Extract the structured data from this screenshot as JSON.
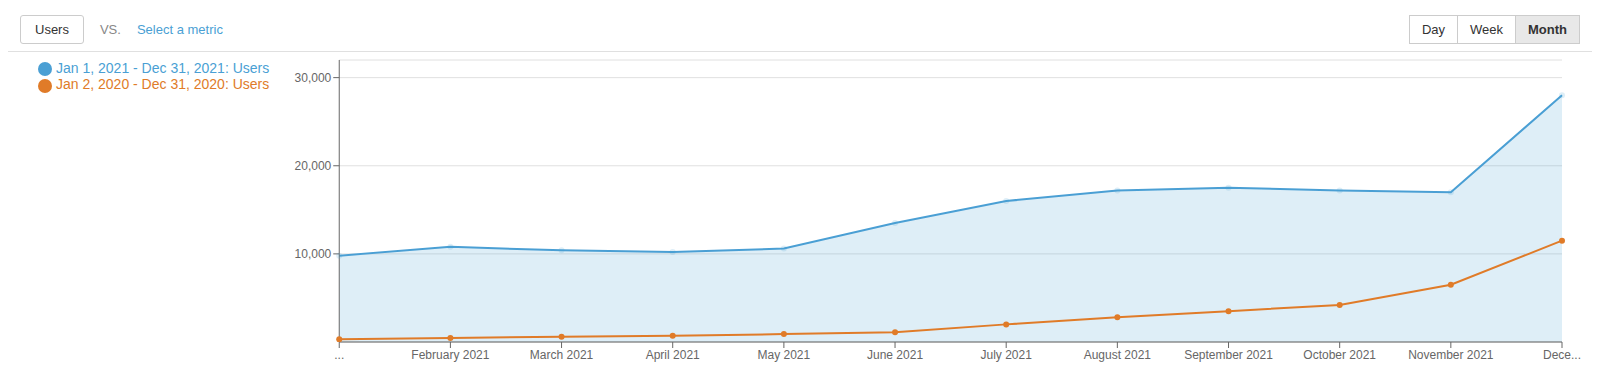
{
  "chart_data": {
    "type": "line",
    "categories": [
      "...",
      "February 2021",
      "March 2021",
      "April 2021",
      "May 2021",
      "June 2021",
      "July 2021",
      "August 2021",
      "September 2021",
      "October 2021",
      "November 2021",
      "Dece..."
    ],
    "series": [
      {
        "name": "Jan 1, 2021 - Dec 31, 2021: Users",
        "type": "area",
        "color": "#4a9fd4",
        "marker": "circle",
        "values": [
          9800,
          10800,
          10400,
          10200,
          10600,
          13500,
          16000,
          17200,
          17500,
          17200,
          17000,
          28000
        ]
      },
      {
        "name": "Jan 2, 2020 - Dec 31, 2020: Users",
        "type": "line",
        "color": "#e07b28",
        "marker": "circle",
        "values": [
          300,
          450,
          600,
          700,
          900,
          1100,
          2000,
          2800,
          3500,
          4200,
          6500,
          11500
        ]
      }
    ],
    "ylim": [
      0,
      32000
    ],
    "yticks": [
      {
        "value": 10000,
        "label": "10,000"
      },
      {
        "value": 20000,
        "label": "20,000"
      },
      {
        "value": 30000,
        "label": "30,000"
      }
    ],
    "grid": true,
    "legend": "top",
    "annotations": [
      "Users",
      "VS.",
      "Select a metric",
      "Day",
      "Week",
      "Month"
    ]
  }
}
